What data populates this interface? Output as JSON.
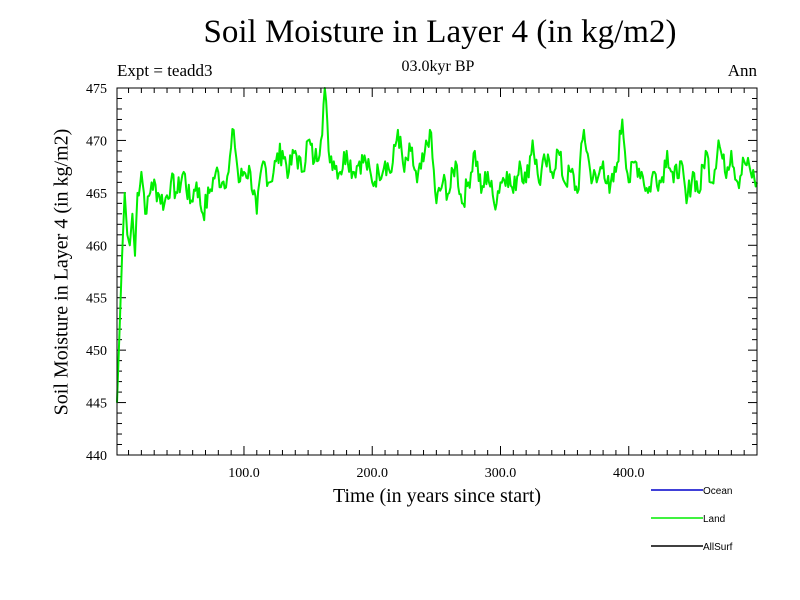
{
  "chart_data": {
    "type": "line",
    "title": "Soil Moisture in Layer 4 (in kg/m2)",
    "subtitle": "03.0kyr BP",
    "expt_label": "Expt = teadd3",
    "season": "Ann",
    "xlabel": "Time (in years since start)",
    "ylabel": "Soil Moisture in Layer 4 (in kg/m2)",
    "xlim": [
      1,
      500
    ],
    "ylim": [
      440,
      475
    ],
    "xticks": [
      100,
      200,
      300,
      400
    ],
    "xtick_labels": [
      "100.0",
      "200.0",
      "300.0",
      "400.0"
    ],
    "yticks": [
      440,
      445,
      450,
      455,
      460,
      465,
      470,
      475
    ],
    "ytick_labels": [
      "440",
      "445",
      "450",
      "455",
      "460",
      "465",
      "470",
      "475"
    ],
    "legend": [
      {
        "name": "Ocean",
        "color": "#0000cc"
      },
      {
        "name": "Land",
        "color": "#00ee00"
      },
      {
        "name": "AllSurf",
        "color": "#000000"
      }
    ],
    "series": [
      {
        "name": "Land",
        "color": "#00ee00",
        "x": [
          1,
          3,
          5,
          7,
          9,
          11,
          13,
          15,
          17,
          20,
          24,
          28,
          33,
          38,
          43,
          48,
          53,
          58,
          63,
          68,
          73,
          78,
          83,
          88,
          92,
          96,
          100,
          105,
          110,
          115,
          120,
          125,
          130,
          135,
          140,
          145,
          150,
          155,
          160,
          163,
          166,
          170,
          175,
          180,
          185,
          190,
          195,
          200,
          205,
          210,
          215,
          220,
          225,
          230,
          235,
          240,
          245,
          250,
          255,
          260,
          265,
          270,
          275,
          280,
          285,
          290,
          295,
          300,
          305,
          310,
          315,
          320,
          325,
          330,
          335,
          340,
          345,
          350,
          355,
          360,
          365,
          370,
          375,
          380,
          385,
          390,
          395,
          400,
          405,
          410,
          415,
          420,
          425,
          430,
          435,
          440,
          445,
          450,
          455,
          460,
          465,
          470,
          475,
          480,
          485,
          490,
          495,
          500
        ],
        "y": [
          445,
          452,
          459,
          465,
          461,
          460,
          463,
          459,
          465,
          467,
          463,
          466,
          465,
          464,
          466,
          465,
          467,
          464,
          466,
          463,
          465,
          467,
          466,
          467,
          471,
          466,
          467,
          467,
          463,
          468,
          466,
          468,
          469,
          467,
          469,
          467,
          470,
          468,
          470,
          475,
          469,
          468,
          467,
          469,
          467,
          468,
          468,
          466,
          467,
          468,
          467,
          471,
          467,
          469,
          466,
          468,
          471,
          464,
          466,
          465,
          468,
          464,
          466,
          469,
          465,
          467,
          464,
          466,
          467,
          465,
          468,
          466,
          470,
          466,
          468,
          467,
          469,
          466,
          467,
          465,
          471,
          467,
          466,
          468,
          465,
          467,
          472,
          466,
          468,
          467,
          465,
          467,
          466,
          469,
          466,
          468,
          464,
          467,
          465,
          469,
          466,
          470,
          467,
          469,
          466,
          468,
          467,
          466
        ]
      }
    ]
  }
}
